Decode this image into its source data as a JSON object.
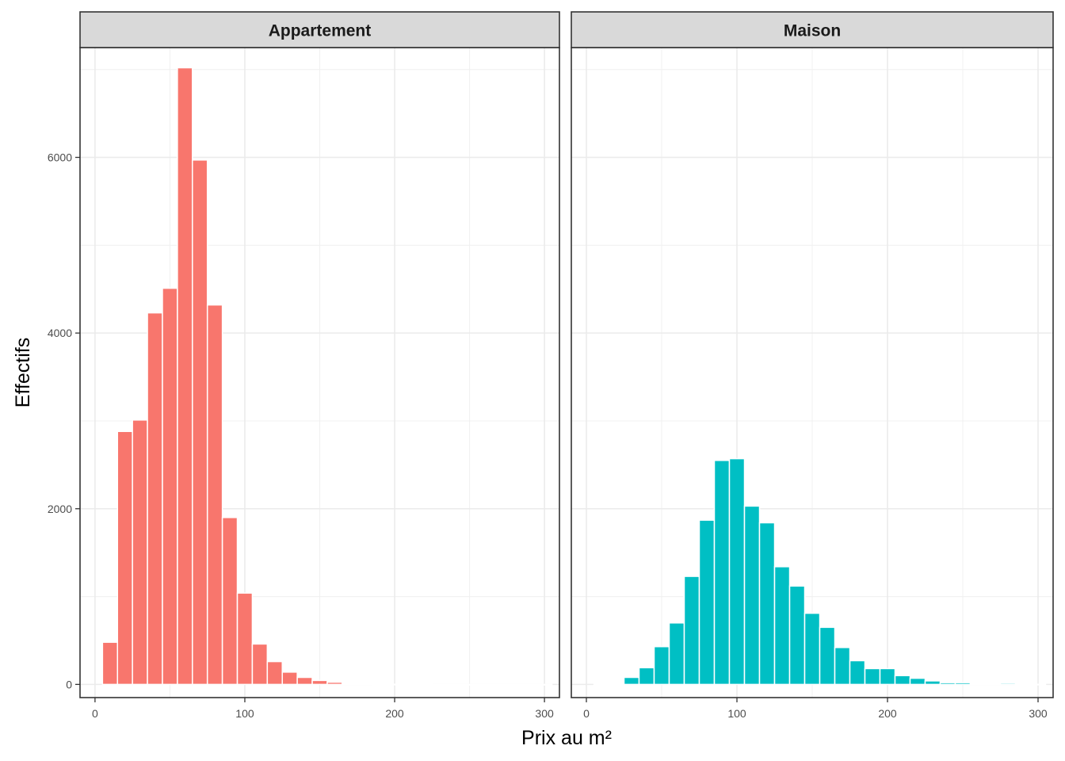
{
  "chart_data": {
    "type": "bar",
    "xlabel": "Prix au m²",
    "ylabel": "Effectifs",
    "xlim": [
      -10,
      310
    ],
    "ylim": [
      -150,
      7250
    ],
    "x_ticks": [
      0,
      100,
      200,
      300
    ],
    "y_ticks": [
      0,
      2000,
      4000,
      6000
    ],
    "minor_gridlines": true,
    "bin_width": 10,
    "panels": [
      {
        "name": "Appartement",
        "color": "#F8766D",
        "bin_centers": [
          10,
          20,
          30,
          40,
          50,
          60,
          70,
          80,
          90,
          100,
          110,
          120,
          130,
          140,
          150,
          160,
          170,
          180,
          190,
          200,
          210,
          220,
          230,
          240,
          250,
          260,
          270,
          280,
          290,
          300
        ],
        "values": [
          480,
          2880,
          3010,
          4230,
          4510,
          7020,
          5970,
          4320,
          1900,
          1040,
          460,
          260,
          140,
          80,
          45,
          25,
          12,
          5,
          3,
          2,
          1,
          1,
          0,
          0,
          0,
          0,
          0,
          0,
          0,
          0
        ]
      },
      {
        "name": "Maison",
        "color": "#00BFC4",
        "bin_centers": [
          10,
          20,
          30,
          40,
          50,
          60,
          70,
          80,
          90,
          100,
          110,
          120,
          130,
          140,
          150,
          160,
          170,
          180,
          190,
          200,
          210,
          220,
          230,
          240,
          250,
          260,
          270,
          280,
          290,
          300
        ],
        "values": [
          2,
          3,
          80,
          190,
          430,
          700,
          1230,
          1870,
          2550,
          2570,
          2030,
          1840,
          1340,
          1120,
          810,
          650,
          420,
          270,
          180,
          180,
          100,
          70,
          40,
          20,
          20,
          10,
          5,
          15,
          3,
          2
        ]
      }
    ]
  }
}
